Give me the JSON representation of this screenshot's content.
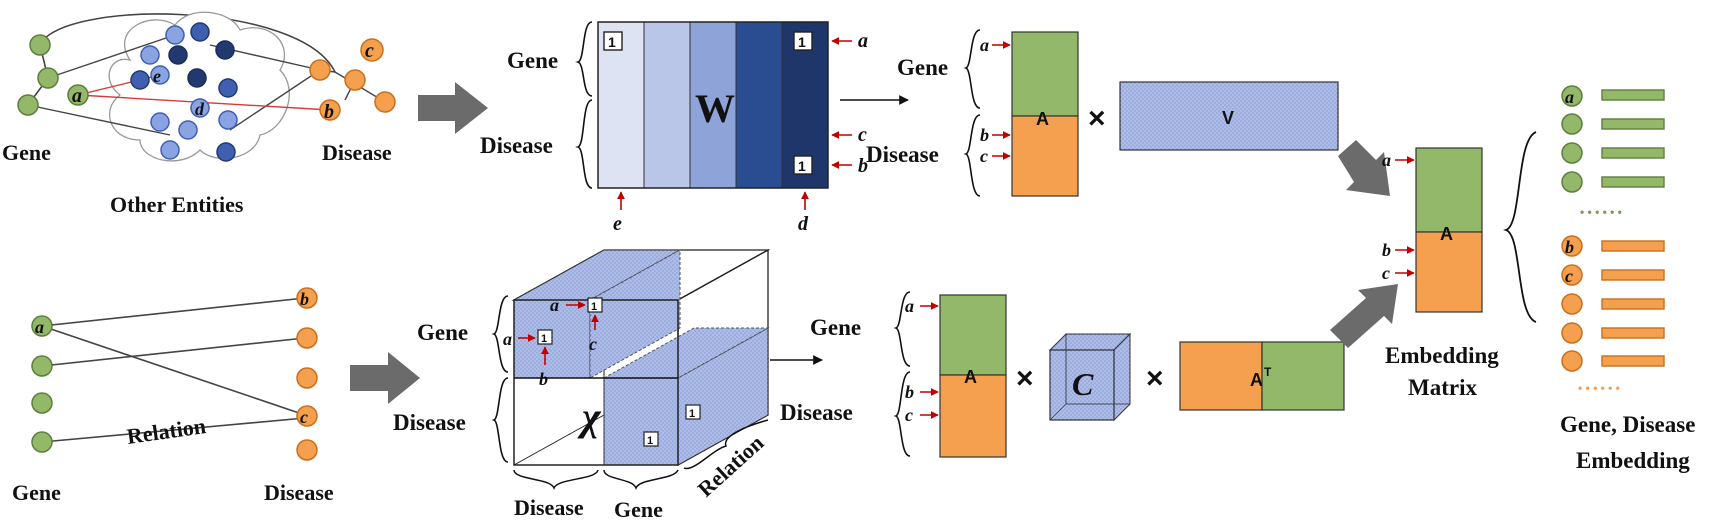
{
  "labels": {
    "gene": "Gene",
    "disease": "Disease",
    "other_entities": "Other Entities",
    "relation": "Relation",
    "embedding_matrix_line1": "Embedding",
    "embedding_matrix_line2": "Matrix",
    "output_line1": "Gene, Disease",
    "output_line2": "Embedding"
  },
  "symbols": {
    "w": "W",
    "v": "V",
    "a_matrix": "A",
    "a_transpose": "A",
    "transpose_mark": "T",
    "x_tensor": "χ",
    "c_core": "C",
    "times": "×",
    "one": "1",
    "dots": "• • • • • •"
  },
  "nodes": {
    "a": "a",
    "b": "b",
    "c": "c",
    "d": "d",
    "e": "e"
  },
  "colors": {
    "gene_green": "#93b86a",
    "gene_dark": "#5d7f3c",
    "disease_orange": "#f5a04f",
    "disease_dark": "#c96f1d",
    "entity_blue": "#3f5fb0",
    "entity_light": "#8aa3e3",
    "hatch_blue": "#aebde8",
    "arrow_gray": "#6b6b6b",
    "red_pointer": "#c00000",
    "w_col_1": "#dde3f2",
    "w_col_2": "#b9c6e8",
    "w_col_3": "#8ea3d7",
    "w_col_4": "#2a4d91",
    "w_col_5": "#1e3669"
  },
  "icons": [
    "right-block-arrow-icon",
    "thin-arrow-icon",
    "red-pointer-arrow-icon",
    "brace-icon",
    "cube-icon",
    "cloud-icon"
  ]
}
